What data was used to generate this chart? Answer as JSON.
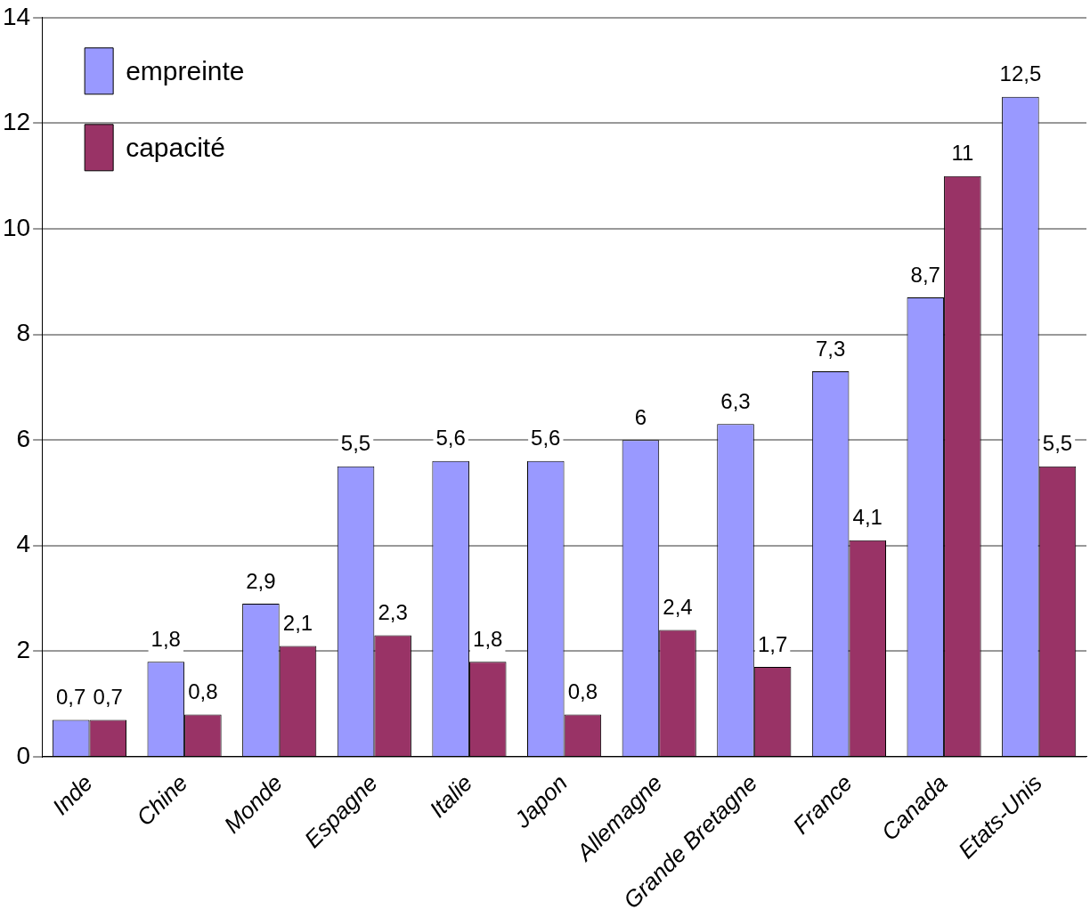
{
  "chart_data": {
    "type": "bar",
    "categories": [
      "Inde",
      "Chine",
      "Monde",
      "Espagne",
      "Italie",
      "Japon",
      "Allemagne",
      "Grande Bretagne",
      "France",
      "Canada",
      "Etats-Unis"
    ],
    "series": [
      {
        "name": "empreinte",
        "color": "#9999ff",
        "values": [
          0.7,
          1.8,
          2.9,
          5.5,
          5.6,
          5.6,
          6,
          6.3,
          7.3,
          8.7,
          12.5
        ],
        "value_labels": [
          "0,7",
          "1,8",
          "2,9",
          "5,5",
          "5,6",
          "5,6",
          "6",
          "6,3",
          "7,3",
          "8,7",
          "12,5"
        ]
      },
      {
        "name": "capacité",
        "color": "#993366",
        "values": [
          0.7,
          0.8,
          2.1,
          2.3,
          1.8,
          0.8,
          2.4,
          1.7,
          4.1,
          11,
          5.5
        ],
        "value_labels": [
          "0,7",
          "0,8",
          "2,1",
          "2,3",
          "1,8",
          "0,8",
          "2,4",
          "1,7",
          "4,1",
          "11",
          "5,5"
        ]
      }
    ],
    "ylim": [
      0,
      14
    ],
    "yticks": [
      0,
      2,
      4,
      6,
      8,
      10,
      12,
      14
    ],
    "grid": "y",
    "legend": "top left"
  }
}
